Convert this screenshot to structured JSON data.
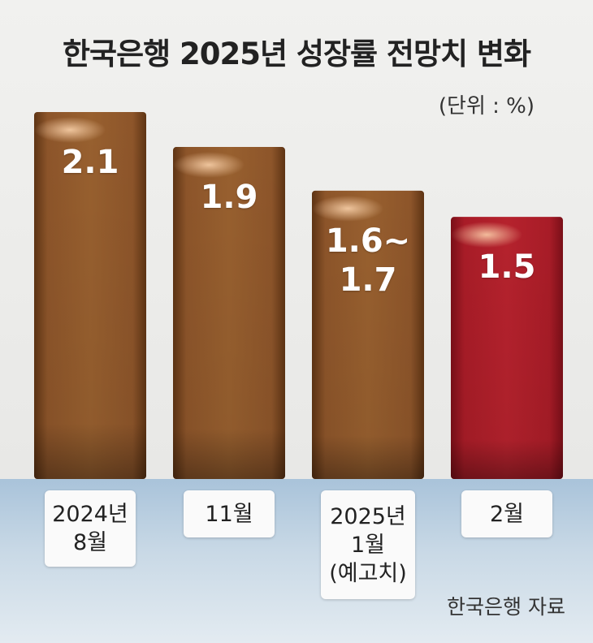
{
  "chart_data": {
    "type": "bar",
    "title": "한국은행 2025년 성장률 전망치 변화",
    "unit": "(단위 : %)",
    "categories": [
      "2024년\n8월",
      "11월",
      "2025년\n1월\n(예고치)",
      "2월"
    ],
    "values": [
      2.1,
      1.9,
      1.65,
      1.5
    ],
    "value_labels": [
      "2.1",
      "1.9",
      "1.6~\n1.7",
      "1.5"
    ],
    "colors": [
      "#8a5228",
      "#8a5228",
      "#8a5228",
      "#b31e2a"
    ],
    "ylim": [
      0,
      2.1
    ],
    "source": "한국은행 자료"
  }
}
